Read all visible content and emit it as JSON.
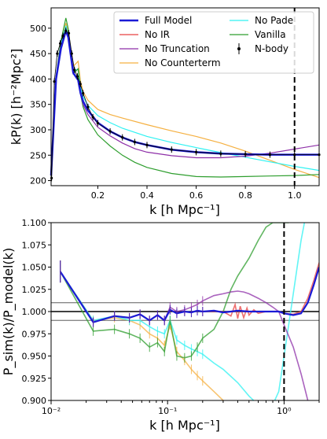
{
  "chart_data": [
    {
      "type": "line",
      "ylabel": "kP(k) [h⁻²Mpc²]",
      "xlabel": "k [h Mpc⁻¹]",
      "xscale": "linear",
      "xlim": [
        0.01,
        1.1
      ],
      "ylim": [
        190,
        540
      ],
      "xticks": [
        0.2,
        0.4,
        0.6,
        0.8,
        1.0
      ],
      "xtick_labels": [
        "0.2",
        "0.4",
        "0.6",
        "0.8",
        "1.0"
      ],
      "yticks": [
        200,
        250,
        300,
        350,
        400,
        450,
        500
      ],
      "ytick_labels": [
        "200",
        "250",
        "300",
        "350",
        "400",
        "450",
        "500"
      ],
      "vline": 1.0,
      "legend_position": "top",
      "legend": [
        "Full Model",
        "No IR",
        "No Truncation",
        "No Counterterm",
        "No Pade",
        "Vanilla",
        "N-body"
      ],
      "series": [
        {
          "name": "No Counterterm",
          "color": "#f5b041",
          "x": [
            0.01,
            0.03,
            0.05,
            0.07,
            0.08,
            0.1,
            0.12,
            0.13,
            0.14,
            0.16,
            0.2,
            0.25,
            0.3,
            0.4,
            0.5,
            0.6,
            0.7,
            0.8,
            0.9,
            1.0,
            1.1
          ],
          "y": [
            210,
            400,
            470,
            510,
            490,
            425,
            435,
            395,
            375,
            358,
            340,
            330,
            323,
            310,
            298,
            287,
            274,
            258,
            240,
            222,
            206
          ]
        },
        {
          "name": "No Pade",
          "color": "#2ef2f2",
          "x": [
            0.01,
            0.03,
            0.05,
            0.07,
            0.08,
            0.1,
            0.12,
            0.13,
            0.14,
            0.16,
            0.2,
            0.25,
            0.3,
            0.4,
            0.5,
            0.6,
            0.7,
            0.8,
            0.9,
            1.0,
            1.1
          ],
          "y": [
            210,
            400,
            468,
            505,
            486,
            415,
            420,
            385,
            365,
            348,
            328,
            314,
            303,
            287,
            275,
            265,
            255,
            246,
            237,
            228,
            220
          ]
        },
        {
          "name": "Vanilla",
          "color": "#2e9e2e",
          "x": [
            0.01,
            0.03,
            0.05,
            0.07,
            0.08,
            0.1,
            0.12,
            0.13,
            0.14,
            0.16,
            0.2,
            0.25,
            0.3,
            0.35,
            0.4,
            0.5,
            0.6,
            0.7,
            0.8,
            0.9,
            1.0,
            1.1
          ],
          "y": [
            210,
            405,
            475,
            520,
            498,
            410,
            420,
            370,
            345,
            320,
            290,
            268,
            250,
            236,
            226,
            214,
            208,
            207,
            208,
            209,
            210,
            212
          ]
        },
        {
          "name": "No Truncation",
          "color": "#8e2fa8",
          "x": [
            0.01,
            0.03,
            0.05,
            0.07,
            0.08,
            0.1,
            0.12,
            0.13,
            0.14,
            0.16,
            0.2,
            0.25,
            0.3,
            0.35,
            0.4,
            0.5,
            0.6,
            0.7,
            0.8,
            0.9,
            1.0,
            1.1
          ],
          "y": [
            210,
            400,
            460,
            495,
            480,
            410,
            400,
            370,
            350,
            330,
            305,
            288,
            274,
            263,
            256,
            249,
            245,
            245,
            248,
            254,
            262,
            270
          ]
        },
        {
          "name": "No IR",
          "color": "#e84040",
          "x": [
            0.01,
            0.03,
            0.05,
            0.07,
            0.08,
            0.1,
            0.12,
            0.13,
            0.14,
            0.16,
            0.2,
            0.25,
            0.3,
            0.35,
            0.4,
            0.5,
            0.6,
            0.7,
            0.8,
            0.9,
            1.0,
            1.1
          ],
          "y": [
            210,
            400,
            460,
            495,
            482,
            412,
            398,
            372,
            356,
            338,
            314,
            297,
            285,
            276,
            270,
            261,
            256,
            253,
            252,
            251,
            251,
            251
          ]
        },
        {
          "name": "Full Model",
          "color": "#1a1ad6",
          "x": [
            0.01,
            0.03,
            0.05,
            0.07,
            0.08,
            0.1,
            0.12,
            0.13,
            0.14,
            0.16,
            0.2,
            0.25,
            0.3,
            0.35,
            0.4,
            0.5,
            0.6,
            0.7,
            0.8,
            0.9,
            1.0,
            1.1
          ],
          "y": [
            210,
            400,
            460,
            495,
            482,
            412,
            398,
            372,
            356,
            338,
            314,
            297,
            285,
            276,
            270,
            261,
            256,
            253,
            252,
            251,
            251,
            251
          ]
        },
        {
          "name": "N-body",
          "color": "#000000",
          "x": [
            0.012,
            0.023,
            0.035,
            0.047,
            0.058,
            0.07,
            0.082,
            0.094,
            0.105,
            0.117,
            0.129,
            0.14,
            0.16,
            0.18,
            0.2,
            0.25,
            0.3,
            0.35,
            0.4,
            0.5,
            0.6,
            0.7,
            0.8,
            0.9,
            1.0,
            1.1
          ],
          "y": [
            205,
            395,
            450,
            470,
            485,
            495,
            490,
            450,
            418,
            405,
            390,
            372,
            345,
            325,
            313,
            297,
            285,
            276,
            270,
            261,
            256,
            253,
            252,
            251,
            251,
            251
          ]
        }
      ]
    },
    {
      "type": "line",
      "ylabel": "P_sim(k)/P_model(k)",
      "xlabel": "k [h Mpc⁻¹]",
      "xscale": "log",
      "xlim": [
        0.01,
        2.0
      ],
      "ylim": [
        0.9,
        1.1
      ],
      "xtick_labels": [
        "10⁻²",
        "10⁻¹",
        "10⁰"
      ],
      "yticks": [
        0.9,
        0.925,
        0.95,
        0.975,
        1.0,
        1.025,
        1.05,
        1.075,
        1.1
      ],
      "ytick_labels": [
        "0.900",
        "0.925",
        "0.950",
        "0.975",
        "1.000",
        "1.025",
        "1.050",
        "1.075",
        "1.100"
      ],
      "vline": 1.0,
      "hlines": [
        0.99,
        1.0,
        1.01
      ],
      "series": [
        {
          "name": "No Counterterm",
          "color": "#f5b041",
          "x": [
            0.012,
            0.023,
            0.035,
            0.047,
            0.058,
            0.07,
            0.082,
            0.094,
            0.105,
            0.12,
            0.14,
            0.16,
            0.18,
            0.2,
            0.25,
            0.3,
            0.35
          ],
          "y": [
            1.045,
            0.99,
            0.993,
            0.99,
            0.985,
            0.975,
            0.97,
            0.962,
            0.985,
            0.955,
            0.945,
            0.935,
            0.928,
            0.922,
            0.91,
            0.9,
            0.895
          ]
        },
        {
          "name": "No Pade",
          "color": "#2ef2f2",
          "x": [
            0.012,
            0.023,
            0.035,
            0.047,
            0.058,
            0.07,
            0.082,
            0.094,
            0.105,
            0.12,
            0.14,
            0.16,
            0.18,
            0.2,
            0.25,
            0.3,
            0.4,
            0.5,
            0.6,
            0.7,
            0.8,
            0.9,
            1.0,
            1.2,
            1.4,
            1.6
          ],
          "y": [
            1.045,
            0.99,
            0.995,
            0.99,
            0.99,
            0.983,
            0.978,
            0.975,
            0.99,
            0.968,
            0.962,
            0.958,
            0.955,
            0.952,
            0.942,
            0.935,
            0.92,
            0.905,
            0.895,
            0.89,
            0.895,
            0.91,
            0.95,
            1.02,
            1.08,
            1.12
          ]
        },
        {
          "name": "Vanilla",
          "color": "#2e9e2e",
          "x": [
            0.012,
            0.023,
            0.035,
            0.047,
            0.058,
            0.07,
            0.082,
            0.094,
            0.105,
            0.12,
            0.14,
            0.16,
            0.18,
            0.2,
            0.25,
            0.3,
            0.35,
            0.4,
            0.5,
            0.6,
            0.7,
            0.8,
            0.9,
            1.0,
            1.1
          ],
          "y": [
            1.045,
            0.978,
            0.98,
            0.975,
            0.97,
            0.96,
            0.965,
            0.955,
            0.99,
            0.95,
            0.948,
            0.95,
            0.96,
            0.97,
            0.98,
            1.0,
            1.025,
            1.04,
            1.06,
            1.08,
            1.095,
            1.1,
            1.1,
            1.1,
            1.1
          ]
        },
        {
          "name": "No Truncation",
          "color": "#8e2fa8",
          "x": [
            0.012,
            0.023,
            0.035,
            0.047,
            0.058,
            0.07,
            0.082,
            0.094,
            0.105,
            0.12,
            0.14,
            0.16,
            0.18,
            0.2,
            0.25,
            0.3,
            0.35,
            0.4,
            0.45,
            0.5,
            0.6,
            0.7,
            0.8,
            0.9,
            1.0,
            1.2,
            1.4,
            1.6
          ],
          "y": [
            1.045,
            0.988,
            0.995,
            0.993,
            0.997,
            0.99,
            0.996,
            0.99,
            1.005,
            1.0,
            1.002,
            1.005,
            1.008,
            1.012,
            1.018,
            1.02,
            1.022,
            1.023,
            1.022,
            1.02,
            1.015,
            1.01,
            1.005,
            1.0,
            0.985,
            0.96,
            0.93,
            0.9
          ]
        },
        {
          "name": "No IR",
          "color": "#e84040",
          "x": [
            0.012,
            0.023,
            0.035,
            0.047,
            0.058,
            0.07,
            0.082,
            0.094,
            0.105,
            0.12,
            0.14,
            0.16,
            0.18,
            0.2,
            0.25,
            0.3,
            0.35,
            0.38,
            0.4,
            0.42,
            0.45,
            0.48,
            0.5,
            0.55,
            0.6,
            0.7,
            0.8,
            0.9,
            1.0,
            1.2,
            1.4,
            1.6,
            1.8,
            2.0
          ],
          "y": [
            1.045,
            0.988,
            0.995,
            0.993,
            0.997,
            0.99,
            0.996,
            0.99,
            1.002,
            0.998,
            1.0,
            0.999,
            1.001,
            1.0,
            1.0,
            1.0,
            0.995,
            1.008,
            0.992,
            1.006,
            0.993,
            1.004,
            0.996,
            1.002,
            0.998,
            1.0,
            1.0,
            1.0,
            0.998,
            0.997,
            1.0,
            1.015,
            1.035,
            1.055
          ]
        },
        {
          "name": "Full Model",
          "color": "#1a1ad6",
          "x": [
            0.012,
            0.023,
            0.035,
            0.047,
            0.058,
            0.07,
            0.082,
            0.094,
            0.105,
            0.12,
            0.14,
            0.16,
            0.18,
            0.2,
            0.25,
            0.3,
            0.35,
            0.4,
            0.5,
            0.6,
            0.7,
            0.8,
            0.9,
            1.0,
            1.2,
            1.4,
            1.6,
            1.8,
            2.0
          ],
          "y": [
            1.045,
            0.988,
            0.995,
            0.993,
            0.997,
            0.99,
            0.996,
            0.99,
            1.002,
            0.998,
            1.0,
            0.999,
            1.001,
            1.0,
            1.001,
            0.999,
            1.0,
            1.001,
            1.0,
            1.0,
            1.0,
            1.0,
            1.0,
            0.998,
            0.996,
            0.998,
            1.01,
            1.03,
            1.05
          ]
        }
      ]
    }
  ]
}
